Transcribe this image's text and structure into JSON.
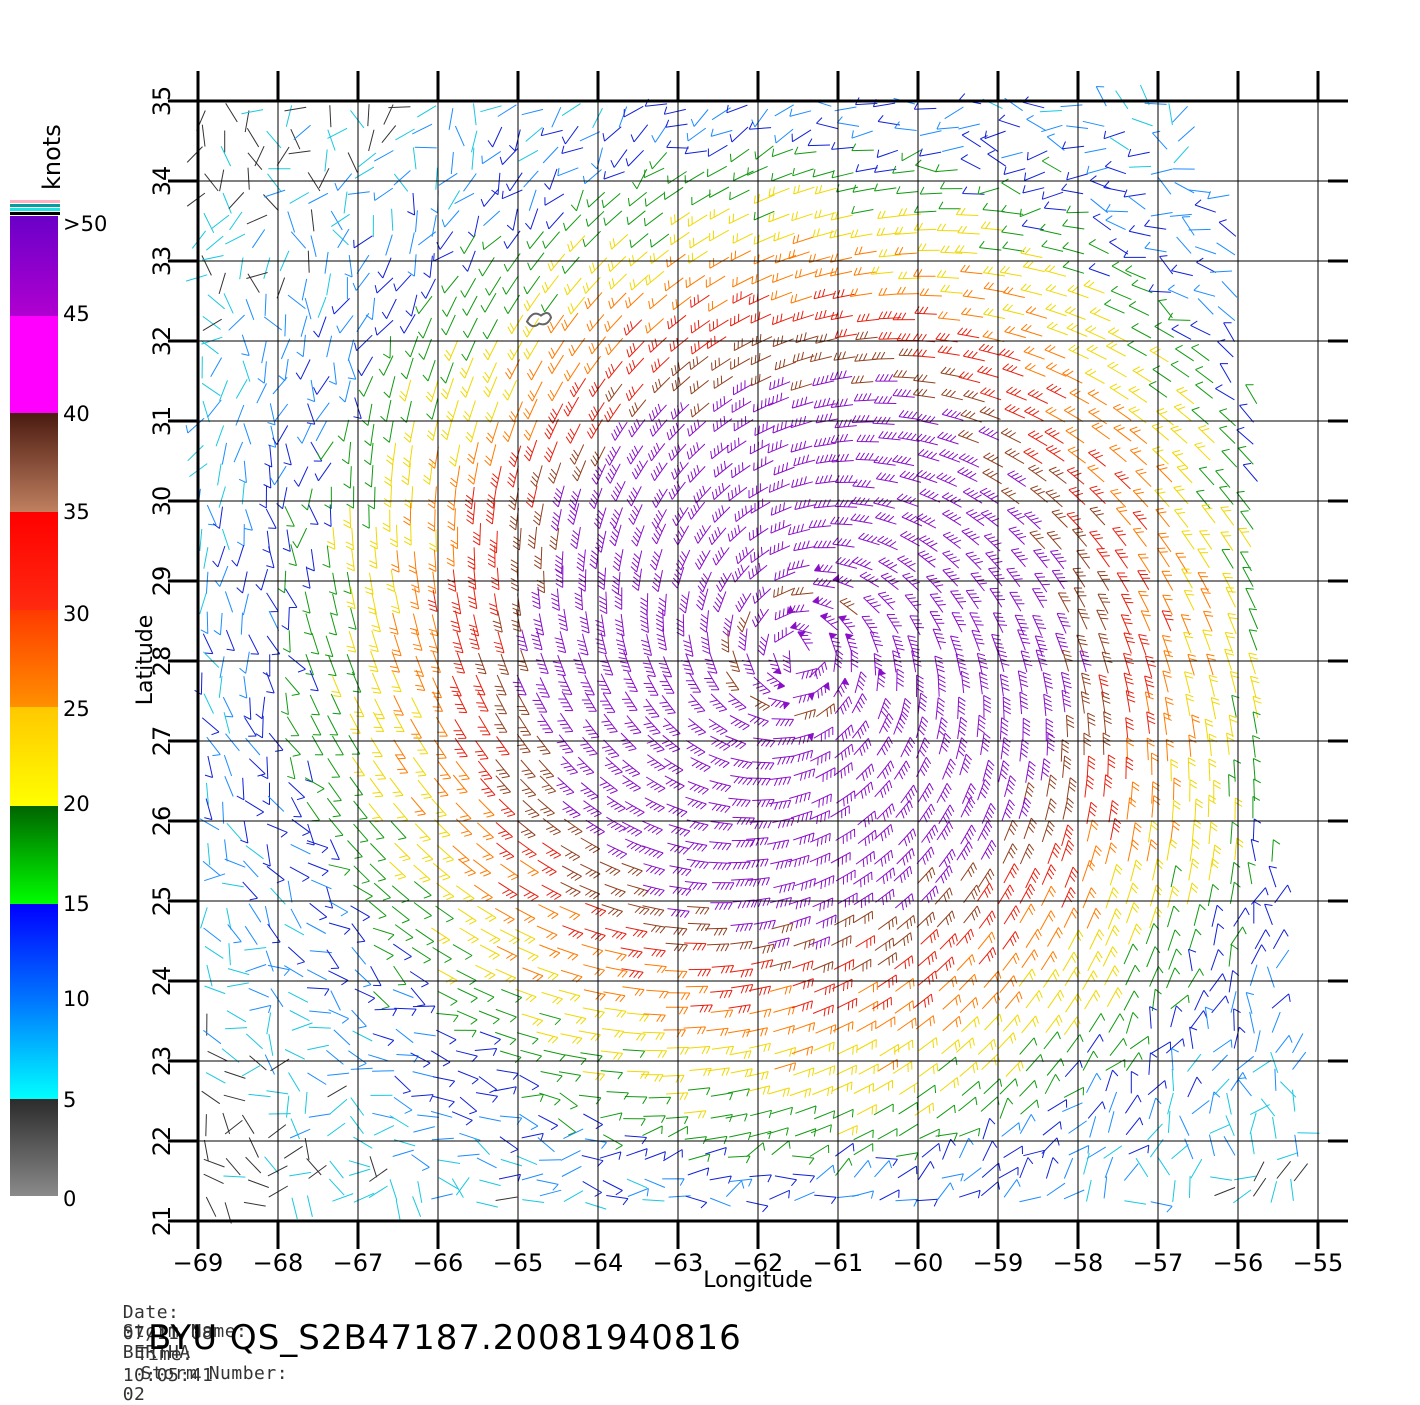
{
  "chart_data": {
    "type": "wind-barb-map",
    "xlabel": "Longitude",
    "ylabel": "Latitude",
    "xlim": [
      -69,
      -55
    ],
    "ylim": [
      21,
      35
    ],
    "x_ticks": [
      -69,
      -68,
      -67,
      -66,
      -65,
      -64,
      -63,
      -62,
      -61,
      -60,
      -59,
      -58,
      -57,
      -56,
      -55
    ],
    "y_ticks": [
      21,
      22,
      23,
      24,
      25,
      26,
      27,
      28,
      29,
      30,
      31,
      32,
      33,
      34,
      35
    ],
    "grid": true,
    "storm_center": {
      "lon": -61.5,
      "lat": 28.1
    },
    "colorbar": {
      "unit": "knots",
      "labels": [
        "0",
        "5",
        "10",
        "15",
        "20",
        "25",
        "30",
        "35",
        "40",
        "45",
        ">50"
      ],
      "bands": [
        {
          "from": 0,
          "to": 5,
          "color_top": "#2b2b2b",
          "color_bottom": "#8a8a8a"
        },
        {
          "from": 5,
          "to": 10,
          "color_top": "#0077ff",
          "color_bottom": "#00ffff"
        },
        {
          "from": 10,
          "to": 15,
          "color_top": "#0000ff",
          "color_bottom": "#0077ff"
        },
        {
          "from": 15,
          "to": 20,
          "color_top": "#006400",
          "color_bottom": "#00ff00"
        },
        {
          "from": 20,
          "to": 25,
          "color_top": "#ffc800",
          "color_bottom": "#ffff00"
        },
        {
          "from": 25,
          "to": 30,
          "color_top": "#ff3a00",
          "color_bottom": "#ff9000"
        },
        {
          "from": 30,
          "to": 35,
          "color_top": "#ff0000",
          "color_bottom": "#ff2a10"
        },
        {
          "from": 35,
          "to": 40,
          "color_top": "#4a1a10",
          "color_bottom": "#c08060"
        },
        {
          "from": 40,
          "to": 45,
          "color_top": "#ff00ff",
          "color_bottom": "#ff00ff"
        },
        {
          "from": 45,
          "to": 50,
          "color_top": "#6a00c8",
          "color_bottom": "#b000d0"
        }
      ],
      "top_stripes": [
        "#ffb0c0",
        "#00a0a0",
        "#20e0e0",
        "#000000"
      ]
    }
  },
  "meta": {
    "date_label": "Date:",
    "date_value": "07/11/08",
    "time_label": "Time:",
    "time_value": "10:05:41",
    "storm_name_label": "Storm Name:",
    "storm_name_value": "BERTHA",
    "storm_number_label": "Storm Number:",
    "storm_number_value": "02",
    "product_title": "BYU QS_S2B47187.20081940816"
  }
}
